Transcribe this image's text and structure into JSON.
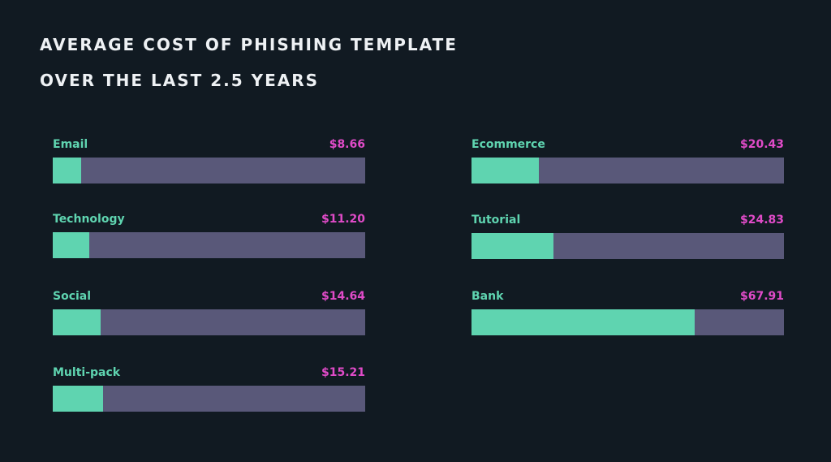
{
  "title": {
    "line1": "AVERAGE COST OF PHISHING TEMPLATE",
    "line2": "OVER THE LAST 2.5 YEARS"
  },
  "colors": {
    "background": "#111a22",
    "title": "#eef1f4",
    "label": "#5fd4b0",
    "value": "#e04bc8",
    "fill": "#5fd4b0",
    "track": "#595879"
  },
  "chart_data": {
    "type": "bar",
    "orientation": "horizontal",
    "title": "AVERAGE COST OF PHISHING TEMPLATE OVER THE LAST 2.5 YEARS",
    "xlim": [
      0,
      95
    ],
    "categories": [
      "Email",
      "Technology",
      "Social",
      "Multi-pack",
      "Ecommerce",
      "Tutorial",
      "Bank"
    ],
    "values": [
      8.66,
      11.2,
      14.64,
      15.21,
      20.43,
      24.83,
      67.91
    ],
    "value_labels": [
      "$8.66",
      "$11.20",
      "$14.64",
      "$15.21",
      "$20.43",
      "$24.83",
      "$67.91"
    ],
    "units": "USD"
  }
}
